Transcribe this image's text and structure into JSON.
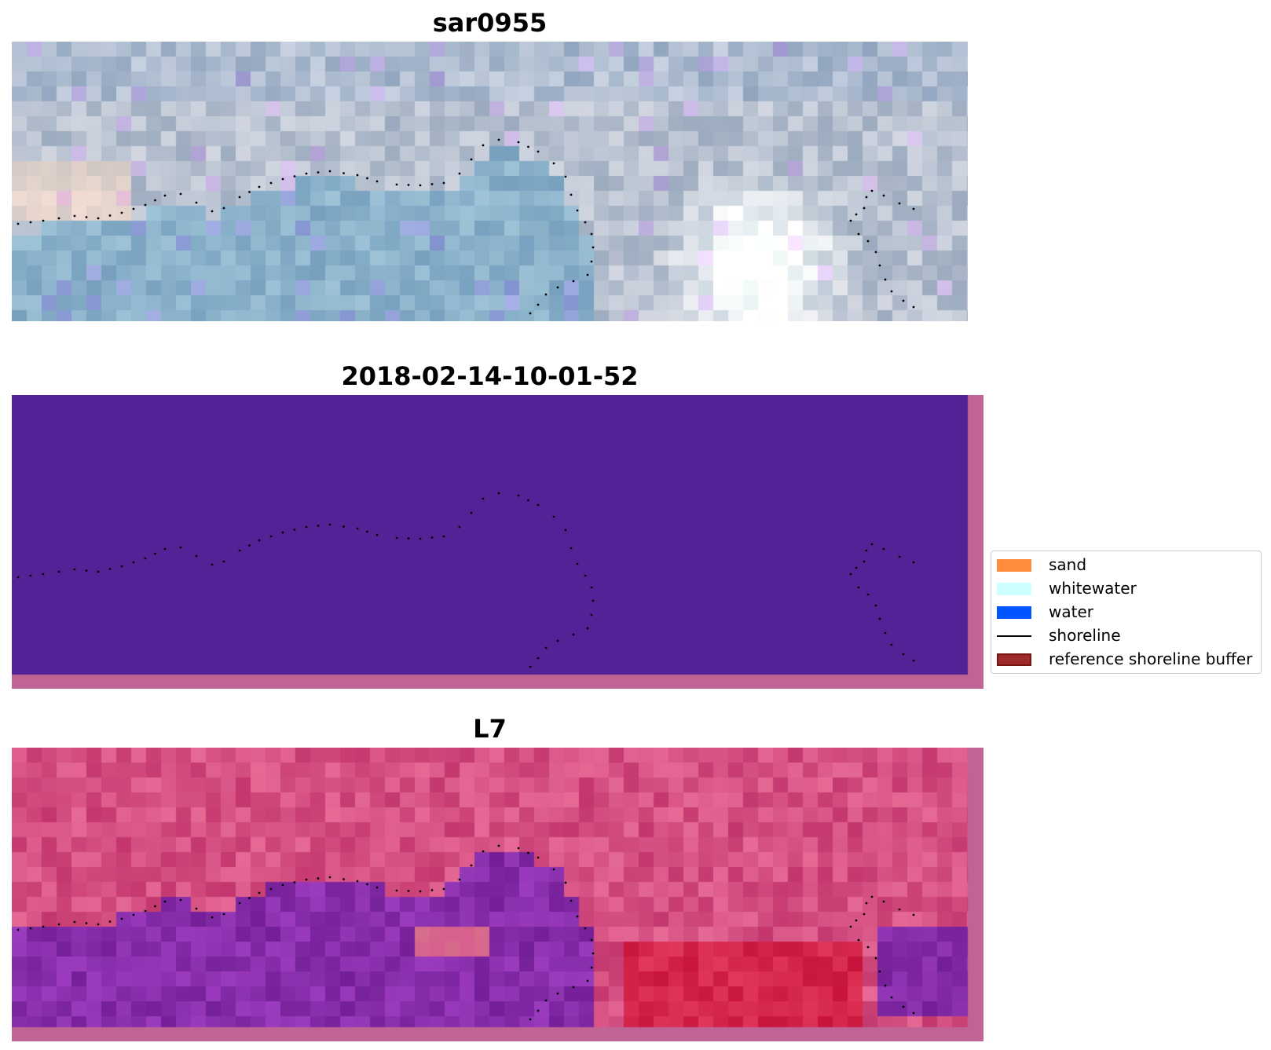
{
  "panels": [
    {
      "title": "sar0955",
      "kind": "rgb"
    },
    {
      "title": "2018-02-14-10-01-52",
      "kind": "classification"
    },
    {
      "title": "L7",
      "kind": "index"
    }
  ],
  "legend": {
    "items": [
      {
        "label": "sand",
        "type": "patch",
        "color": "#ff8c3a"
      },
      {
        "label": "whitewater",
        "type": "patch",
        "color": "#ccffff"
      },
      {
        "label": "water",
        "type": "patch",
        "color": "#0055ff"
      },
      {
        "label": "shoreline",
        "type": "line",
        "color": "#000000"
      },
      {
        "label": "reference shoreline buffer",
        "type": "patch",
        "color": "#9e2a2b",
        "edge": "#7a1515"
      }
    ]
  },
  "colors": {
    "classification_fill": "#522296",
    "buffer_pad": "#c06496",
    "shoreline_dots": "#000000"
  }
}
